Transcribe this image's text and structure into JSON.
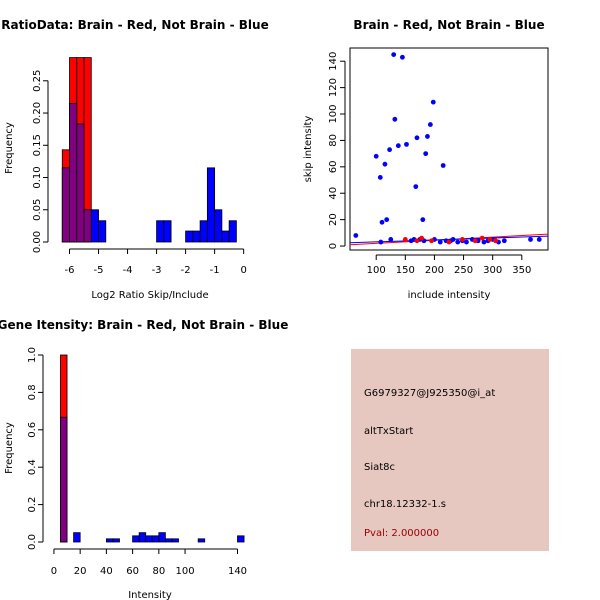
{
  "colors": {
    "red": "#ff0000",
    "blue": "#0000ff",
    "overlap": "#800080",
    "panel_bg": "#e6c8c0",
    "pval": "#990000"
  },
  "chart_data": [
    {
      "type": "bar",
      "kind": "overlaid-histogram",
      "title": "RatioData: Brain - Red, Not Brain - Blue",
      "xlabel": "Log2 Ratio Skip/Include",
      "ylabel": "Frequency",
      "xlim": [
        -6.5,
        0.15
      ],
      "ylim": [
        0,
        0.29
      ],
      "xticks": [
        -6,
        -5,
        -4,
        -3,
        -2,
        -1,
        0
      ],
      "yticks": [
        0.0,
        0.05,
        0.1,
        0.15,
        0.2,
        0.25
      ],
      "ytick_labels": [
        "0.00",
        "0.05",
        "0.10",
        "0.15",
        "0.20",
        "0.25"
      ],
      "bin_width": 0.25,
      "series": [
        {
          "name": "Brain",
          "color": "red",
          "bins": [
            {
              "start": -6.25,
              "value": 0.143
            },
            {
              "start": -6.0,
              "value": 0.286
            },
            {
              "start": -5.75,
              "value": 0.286
            },
            {
              "start": -5.5,
              "value": 0.286
            }
          ]
        },
        {
          "name": "Not Brain",
          "color": "blue",
          "bins": [
            {
              "start": -6.25,
              "value": 0.115
            },
            {
              "start": -6.0,
              "value": 0.215
            },
            {
              "start": -5.75,
              "value": 0.183
            },
            {
              "start": -5.5,
              "value": 0.05
            },
            {
              "start": -5.25,
              "value": 0.05
            },
            {
              "start": -5.0,
              "value": 0.033
            },
            {
              "start": -3.0,
              "value": 0.033
            },
            {
              "start": -2.75,
              "value": 0.033
            },
            {
              "start": -2.0,
              "value": 0.017
            },
            {
              "start": -1.75,
              "value": 0.017
            },
            {
              "start": -1.5,
              "value": 0.033
            },
            {
              "start": -1.25,
              "value": 0.115
            },
            {
              "start": -1.0,
              "value": 0.05
            },
            {
              "start": -0.75,
              "value": 0.017
            },
            {
              "start": -0.5,
              "value": 0.033
            }
          ]
        }
      ]
    },
    {
      "type": "scatter",
      "title": "Brain - Red, Not Brain - Blue",
      "xlabel": "include intensity",
      "ylabel": "skip intensity",
      "xlim": [
        55,
        395
      ],
      "ylim": [
        -3,
        150
      ],
      "xticks": [
        100,
        150,
        200,
        250,
        300,
        350
      ],
      "yticks": [
        0,
        20,
        40,
        60,
        80,
        100,
        120,
        140
      ],
      "series": [
        {
          "name": "Not Brain",
          "color": "blue",
          "points": [
            [
              65,
              8
            ],
            [
              100,
              68
            ],
            [
              107,
              52
            ],
            [
              108,
              3
            ],
            [
              110,
              18
            ],
            [
              115,
              62
            ],
            [
              118,
              20
            ],
            [
              123,
              73
            ],
            [
              125,
              5
            ],
            [
              130,
              145
            ],
            [
              132,
              96
            ],
            [
              138,
              76
            ],
            [
              145,
              143
            ],
            [
              152,
              77
            ],
            [
              160,
              4
            ],
            [
              165,
              5
            ],
            [
              168,
              45
            ],
            [
              170,
              82
            ],
            [
              175,
              5
            ],
            [
              180,
              20
            ],
            [
              182,
              4
            ],
            [
              185,
              70
            ],
            [
              188,
              83
            ],
            [
              193,
              92
            ],
            [
              198,
              109
            ],
            [
              200,
              5
            ],
            [
              210,
              3
            ],
            [
              215,
              61
            ],
            [
              220,
              4
            ],
            [
              228,
              4
            ],
            [
              232,
              5
            ],
            [
              240,
              3
            ],
            [
              248,
              4
            ],
            [
              255,
              3
            ],
            [
              265,
              5
            ],
            [
              275,
              4
            ],
            [
              285,
              3
            ],
            [
              292,
              4
            ],
            [
              300,
              5
            ],
            [
              310,
              3
            ],
            [
              320,
              4
            ],
            [
              365,
              5
            ],
            [
              380,
              5
            ]
          ]
        },
        {
          "name": "Brain",
          "color": "red",
          "points": [
            [
              150,
              5
            ],
            [
              170,
              4
            ],
            [
              178,
              6
            ],
            [
              195,
              4
            ],
            [
              225,
              3
            ],
            [
              248,
              5
            ],
            [
              270,
              4
            ],
            [
              282,
              6
            ],
            [
              295,
              5
            ],
            [
              305,
              4
            ]
          ]
        }
      ],
      "fit_lines": [
        {
          "color": "red",
          "from": [
            55,
            1.0
          ],
          "to": [
            395,
            9.0
          ]
        },
        {
          "color": "blue",
          "from": [
            55,
            2.5
          ],
          "to": [
            395,
            7.5
          ]
        }
      ]
    },
    {
      "type": "bar",
      "kind": "overlaid-histogram",
      "title": "Gene Itensity: Brain - Red, Not Brain - Blue",
      "xlabel": "Intensity",
      "ylabel": "Frequency",
      "xlim": [
        -3,
        148
      ],
      "ylim": [
        0,
        1.0
      ],
      "xticks": [
        0,
        20,
        40,
        60,
        80,
        100,
        140
      ],
      "yticks": [
        0.0,
        0.2,
        0.4,
        0.6,
        0.8,
        1.0
      ],
      "ytick_labels": [
        "0.0",
        "0.2",
        "0.4",
        "0.6",
        "0.8",
        "1.0"
      ],
      "bin_width": 5,
      "series": [
        {
          "name": "Brain",
          "color": "red",
          "bins": [
            {
              "start": 5,
              "value": 1.0
            }
          ]
        },
        {
          "name": "Not Brain",
          "color": "blue",
          "bins": [
            {
              "start": 5,
              "value": 0.667
            },
            {
              "start": 15,
              "value": 0.05
            },
            {
              "start": 40,
              "value": 0.017
            },
            {
              "start": 45,
              "value": 0.017
            },
            {
              "start": 60,
              "value": 0.033
            },
            {
              "start": 65,
              "value": 0.05
            },
            {
              "start": 70,
              "value": 0.033
            },
            {
              "start": 75,
              "value": 0.033
            },
            {
              "start": 80,
              "value": 0.05
            },
            {
              "start": 85,
              "value": 0.017
            },
            {
              "start": 90,
              "value": 0.017
            },
            {
              "start": 110,
              "value": 0.017
            },
            {
              "start": 140,
              "value": 0.033
            }
          ]
        }
      ]
    }
  ],
  "info_panel": {
    "probe_id": "G6979327@J925350@i_at",
    "event_type": "altTxStart",
    "gene": "Siat8c",
    "location": "chr18.12332-1.s",
    "pval": "Pval: 2.000000"
  }
}
